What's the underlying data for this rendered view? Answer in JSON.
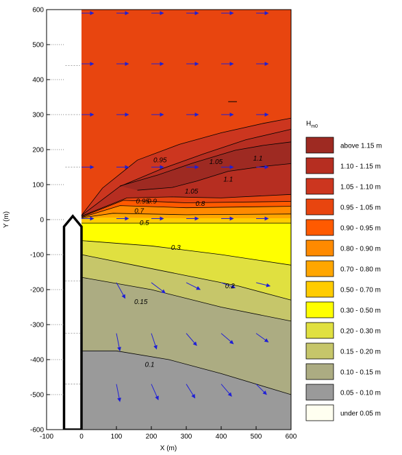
{
  "chart_data": {
    "type": "contour",
    "xlabel": "X (m)",
    "ylabel": "Y (m)",
    "xlim": [
      -100,
      600
    ],
    "ylim": [
      -600,
      600
    ],
    "xticks": [
      -100,
      0,
      100,
      200,
      300,
      400,
      500,
      600
    ],
    "yticks": [
      600,
      500,
      400,
      300,
      200,
      100,
      0,
      -100,
      -200,
      -300,
      -400,
      -500,
      -600
    ],
    "legend_title": "H",
    "legend_title_sub": "m0",
    "legend_placement": "right",
    "legend": [
      {
        "label": "above 1.15 m",
        "color": "#9e2a22"
      },
      {
        "label": "1.10 - 1.15 m",
        "color": "#b62e21"
      },
      {
        "label": "1.05 - 1.10 m",
        "color": "#cc361f"
      },
      {
        "label": "0.95 - 1.05 m",
        "color": "#e8450f"
      },
      {
        "label": "0.90 - 0.95 m",
        "color": "#ff5a00"
      },
      {
        "label": "0.80 - 0.90 m",
        "color": "#ff8a00"
      },
      {
        "label": "0.70 - 0.80 m",
        "color": "#ffa600"
      },
      {
        "label": "0.50 - 0.70 m",
        "color": "#ffcc00"
      },
      {
        "label": "0.30 - 0.50 m",
        "color": "#ffff00"
      },
      {
        "label": "0.20 - 0.30 m",
        "color": "#e0e040"
      },
      {
        "label": "0.15 - 0.20 m",
        "color": "#c6c66a"
      },
      {
        "label": "0.10 - 0.15 m",
        "color": "#acac82"
      },
      {
        "label": "0.05 - 0.10 m",
        "color": "#9a9a9a"
      },
      {
        "label": "under 0.05 m",
        "color": "#fffff0"
      }
    ],
    "contour_labels": [
      {
        "text": "0.95",
        "x": 225,
        "y": 170
      },
      {
        "text": "1.05",
        "x": 385,
        "y": 165
      },
      {
        "text": "1.1",
        "x": 505,
        "y": 175
      },
      {
        "text": "1.1",
        "x": 420,
        "y": 115
      },
      {
        "text": "1.05",
        "x": 315,
        "y": 80
      },
      {
        "text": "0.95",
        "x": 175,
        "y": 52
      },
      {
        "text": "0.9",
        "x": 202,
        "y": 52
      },
      {
        "text": "0.8",
        "x": 340,
        "y": 45
      },
      {
        "text": "0.7",
        "x": 165,
        "y": 25
      },
      {
        "text": "0.5",
        "x": 180,
        "y": -10
      },
      {
        "text": "0.3",
        "x": 270,
        "y": -80
      },
      {
        "text": "0.2",
        "x": 425,
        "y": -190
      },
      {
        "text": "0.15",
        "x": 170,
        "y": -235
      },
      {
        "text": "0.1",
        "x": 195,
        "y": -415
      }
    ],
    "vectors": [
      {
        "x": 0,
        "y": 590,
        "dx": 35,
        "dy": 0
      },
      {
        "x": 100,
        "y": 590,
        "dx": 35,
        "dy": 0
      },
      {
        "x": 200,
        "y": 590,
        "dx": 35,
        "dy": 0
      },
      {
        "x": 300,
        "y": 590,
        "dx": 35,
        "dy": 0
      },
      {
        "x": 400,
        "y": 590,
        "dx": 35,
        "dy": 0
      },
      {
        "x": 500,
        "y": 590,
        "dx": 35,
        "dy": 0
      },
      {
        "x": 0,
        "y": 445,
        "dx": 35,
        "dy": 0
      },
      {
        "x": 100,
        "y": 445,
        "dx": 35,
        "dy": 0
      },
      {
        "x": 200,
        "y": 445,
        "dx": 35,
        "dy": 0
      },
      {
        "x": 300,
        "y": 445,
        "dx": 35,
        "dy": 0
      },
      {
        "x": 400,
        "y": 445,
        "dx": 35,
        "dy": 0
      },
      {
        "x": 500,
        "y": 445,
        "dx": 35,
        "dy": 0
      },
      {
        "x": 0,
        "y": 300,
        "dx": 35,
        "dy": 0
      },
      {
        "x": 100,
        "y": 300,
        "dx": 35,
        "dy": 0
      },
      {
        "x": 200,
        "y": 300,
        "dx": 35,
        "dy": 0
      },
      {
        "x": 300,
        "y": 300,
        "dx": 35,
        "dy": 0
      },
      {
        "x": 400,
        "y": 300,
        "dx": 35,
        "dy": 0
      },
      {
        "x": 500,
        "y": 300,
        "dx": 35,
        "dy": 0
      },
      {
        "x": 0,
        "y": 150,
        "dx": 35,
        "dy": 0
      },
      {
        "x": 100,
        "y": 150,
        "dx": 35,
        "dy": 0
      },
      {
        "x": 200,
        "y": 150,
        "dx": 35,
        "dy": 0
      },
      {
        "x": 300,
        "y": 150,
        "dx": 35,
        "dy": 0
      },
      {
        "x": 400,
        "y": 150,
        "dx": 35,
        "dy": 0
      },
      {
        "x": 500,
        "y": 150,
        "dx": 35,
        "dy": 0
      },
      {
        "x": 0,
        "y": 3,
        "dx": 35,
        "dy": 0
      },
      {
        "x": 100,
        "y": 3,
        "dx": 35,
        "dy": 0
      },
      {
        "x": 200,
        "y": 3,
        "dx": 35,
        "dy": 0
      },
      {
        "x": 300,
        "y": 3,
        "dx": 35,
        "dy": 0
      },
      {
        "x": 400,
        "y": 3,
        "dx": 35,
        "dy": 0
      },
      {
        "x": 500,
        "y": 3,
        "dx": 35,
        "dy": 0
      },
      {
        "x": 100,
        "y": -180,
        "dx": 25,
        "dy": -45
      },
      {
        "x": 200,
        "y": -180,
        "dx": 40,
        "dy": -30
      },
      {
        "x": 300,
        "y": -180,
        "dx": 40,
        "dy": -20
      },
      {
        "x": 400,
        "y": -180,
        "dx": 40,
        "dy": -15
      },
      {
        "x": 500,
        "y": -180,
        "dx": 40,
        "dy": -10
      },
      {
        "x": 100,
        "y": -325,
        "dx": 10,
        "dy": -50
      },
      {
        "x": 200,
        "y": -325,
        "dx": 15,
        "dy": -45
      },
      {
        "x": 300,
        "y": -325,
        "dx": 30,
        "dy": -35
      },
      {
        "x": 400,
        "y": -325,
        "dx": 35,
        "dy": -30
      },
      {
        "x": 500,
        "y": -325,
        "dx": 35,
        "dy": -25
      },
      {
        "x": 100,
        "y": -470,
        "dx": 10,
        "dy": -50
      },
      {
        "x": 200,
        "y": -470,
        "dx": 20,
        "dy": -45
      },
      {
        "x": 300,
        "y": -470,
        "dx": 25,
        "dy": -40
      },
      {
        "x": 400,
        "y": -470,
        "dx": 30,
        "dy": -35
      },
      {
        "x": 500,
        "y": -470,
        "dx": 30,
        "dy": -30
      }
    ]
  }
}
